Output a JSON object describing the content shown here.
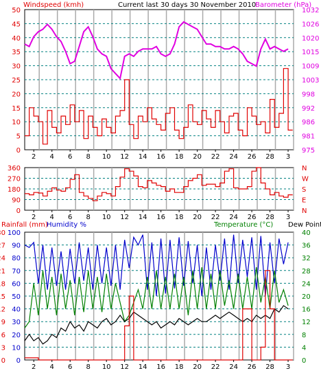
{
  "header": {
    "left_title": "Windspeed (kmh)",
    "center_title": "Current last 30 days 30 November 2010",
    "right_title": "Barometer (hPa)"
  },
  "colors": {
    "windspeed": "#e00000",
    "barometer": "#e000e0",
    "wind_dir": "#e00000",
    "rainfall": "#e00000",
    "humidity": "#0000cc",
    "temperature": "#008000",
    "dewpoint": "#000000",
    "grid_dash": "#008080",
    "vertical_day_lines": "#aaaaaa",
    "axis_text_left_top": "#e00000",
    "axis_text_right_top": "#e000e0",
    "axis_text_left_bottom_rain": "#e00000",
    "axis_text_left_bottom_hum": "#0000cc",
    "axis_text_right_bottom": "#008000"
  },
  "x_ticks": [
    "2",
    "4",
    "6",
    "8",
    "10",
    "12",
    "14",
    "16",
    "18",
    "20",
    "22",
    "24",
    "26",
    "28",
    "3"
  ],
  "chart_data": [
    {
      "type": "line",
      "title": "Current last 30 days 30 November 2010",
      "xlabel": "",
      "ylabel": "Windspeed (kmh)",
      "ylim": [
        0,
        50
      ],
      "yticks": [
        "0",
        "5",
        "10",
        "15",
        "20",
        "25",
        "30",
        "35",
        "40",
        "45",
        "50"
      ],
      "y2label": "Barometer (hPa)",
      "y2lim": [
        975,
        1032
      ],
      "y2ticks": [
        "975",
        "981",
        "986",
        "992",
        "998",
        "1003",
        "1009",
        "1015",
        "1020",
        "1026",
        "1032"
      ],
      "x_range_days": [
        1,
        30.6
      ],
      "grid": true,
      "series": [
        {
          "name": "Windspeed (kmh)",
          "axis": "left",
          "x": [
            1,
            1.5,
            2,
            2.5,
            3,
            3.5,
            4,
            4.5,
            5,
            5.5,
            6,
            6.5,
            7,
            7.5,
            8,
            8.5,
            9,
            9.5,
            10,
            10.5,
            11,
            11.5,
            12,
            12.5,
            13,
            13.5,
            14,
            14.5,
            15,
            15.5,
            16,
            16.5,
            17,
            17.5,
            18,
            18.5,
            19,
            19.5,
            20,
            20.5,
            21,
            21.5,
            22,
            22.5,
            23,
            23.5,
            24,
            24.5,
            25,
            25.5,
            26,
            26.5,
            27,
            27.5,
            28,
            28.5,
            29,
            29.5,
            30
          ],
          "values": [
            5,
            15,
            12,
            10,
            2,
            14,
            8,
            6,
            12,
            9,
            16,
            10,
            14,
            4,
            12,
            8,
            5,
            11,
            8,
            6,
            12,
            14,
            25,
            9,
            4,
            12,
            10,
            15,
            11,
            9,
            7,
            13,
            15,
            7,
            4,
            8,
            16,
            10,
            9,
            14,
            11,
            8,
            14,
            10,
            6,
            12,
            13,
            7,
            5,
            15,
            12,
            9,
            10,
            6,
            18,
            8,
            13,
            29,
            7
          ]
        },
        {
          "name": "Barometer (hPa)",
          "axis": "right",
          "x": [
            1,
            1.5,
            2,
            2.5,
            3,
            3.5,
            4,
            4.5,
            5,
            5.5,
            6,
            6.5,
            7,
            7.5,
            8,
            8.5,
            9,
            9.5,
            10,
            10.5,
            11,
            11.5,
            12,
            12.5,
            13,
            13.5,
            14,
            14.5,
            15,
            15.5,
            16,
            16.5,
            17,
            17.5,
            18,
            18.5,
            19,
            19.5,
            20,
            20.5,
            21,
            21.5,
            22,
            22.5,
            23,
            23.5,
            24,
            24.5,
            25,
            25.5,
            26,
            26.5,
            27,
            27.5,
            28,
            28.5,
            29,
            29.5,
            30
          ],
          "values": [
            1018,
            1017,
            1021,
            1023,
            1024,
            1026,
            1024,
            1021,
            1019,
            1015,
            1010,
            1011,
            1017,
            1023,
            1025,
            1021,
            1016,
            1014,
            1013,
            1008,
            1006,
            1004,
            1013,
            1014,
            1013,
            1015,
            1016,
            1016,
            1016,
            1017,
            1014,
            1013,
            1014,
            1018,
            1025,
            1027,
            1026,
            1025,
            1024,
            1021,
            1018,
            1018,
            1017,
            1017,
            1016,
            1016,
            1017,
            1016,
            1014,
            1011,
            1010,
            1009,
            1016,
            1020,
            1016,
            1017,
            1016,
            1015,
            1016
          ]
        }
      ]
    },
    {
      "type": "line",
      "ylabel": "",
      "ylim": [
        0,
        360
      ],
      "yticks": [
        "0",
        "90",
        "180",
        "270",
        "360"
      ],
      "y2ticks": [
        "N",
        "W",
        "S",
        "E",
        "N"
      ],
      "grid": true,
      "series": [
        {
          "name": "",
          "x": [
            1,
            1.5,
            2,
            2.5,
            3,
            3.5,
            4,
            4.5,
            5,
            5.5,
            6,
            6.5,
            7,
            7.5,
            8,
            8.5,
            9,
            9.5,
            10,
            10.5,
            11,
            11.5,
            12,
            12.5,
            13,
            13.5,
            14,
            14.5,
            15,
            15.5,
            16,
            16.5,
            17,
            17.5,
            18,
            18.5,
            19,
            19.5,
            20,
            20.5,
            21,
            21.5,
            22,
            22.5,
            23,
            23.5,
            24,
            24.5,
            25,
            25.5,
            26,
            26.5,
            27,
            27.5,
            28,
            28.5,
            29,
            29.5,
            30
          ],
          "values": [
            140,
            130,
            150,
            145,
            120,
            160,
            190,
            170,
            160,
            190,
            260,
            300,
            150,
            120,
            100,
            80,
            120,
            150,
            140,
            120,
            200,
            280,
            350,
            330,
            290,
            200,
            190,
            250,
            230,
            210,
            200,
            160,
            180,
            150,
            150,
            200,
            250,
            270,
            300,
            210,
            220,
            220,
            200,
            230,
            330,
            350,
            190,
            180,
            180,
            200,
            330,
            360,
            230,
            180,
            130,
            150,
            120,
            110,
            130
          ]
        }
      ]
    },
    {
      "type": "line",
      "ylabel": "Rainfall (mm)  Humidity %",
      "ylim": [
        0,
        30
      ],
      "yticks": [
        "0",
        "3",
        "6",
        "9",
        "12",
        "15",
        "18",
        "21",
        "24",
        "27",
        "30"
      ],
      "hum_yticks": [
        "0",
        "10",
        "20",
        "30",
        "40",
        "50",
        "60",
        "70",
        "80",
        "90",
        "100"
      ],
      "y2label": "Temperature (°C)Dew Point",
      "y2lim": [
        0,
        40
      ],
      "y2ticks": [
        "0",
        "4",
        "8",
        "12",
        "16",
        "20",
        "24",
        "28",
        "32",
        "36",
        "40"
      ],
      "grid": true,
      "series": [
        {
          "name": "Rainfall (mm)",
          "axis": "left",
          "x": [
            1,
            1.5,
            2,
            2.5,
            3,
            3.5,
            4,
            4.5,
            5,
            5.5,
            6,
            6.5,
            7,
            7.5,
            8,
            8.5,
            9,
            9.5,
            10,
            10.5,
            11,
            11.5,
            12,
            12.5,
            13,
            13.5,
            14,
            14.5,
            15,
            15.5,
            16,
            16.5,
            17,
            17.5,
            18,
            18.5,
            19,
            19.5,
            20,
            20.5,
            21,
            21.5,
            22,
            22.5,
            23,
            23.5,
            24,
            24.5,
            25,
            25.5,
            26,
            26.5,
            27,
            27.5,
            28,
            28.5,
            29,
            29.5,
            30
          ],
          "values": [
            0.5,
            0.5,
            0.5,
            0,
            0,
            0,
            0,
            0,
            0,
            0,
            0,
            0,
            0,
            0,
            0,
            0,
            0,
            0,
            0,
            0,
            0,
            0,
            8,
            15,
            0,
            0,
            0,
            0,
            0,
            0,
            0,
            0,
            0,
            0,
            0,
            0,
            0,
            0,
            0,
            0,
            0,
            0,
            0,
            0,
            0,
            0,
            0,
            0,
            12,
            12,
            0,
            0,
            3,
            21,
            12,
            0,
            0,
            0,
            0
          ]
        },
        {
          "name": "Humidity %",
          "axis": "hum",
          "x": [
            1,
            1.5,
            2,
            2.5,
            3,
            3.5,
            4,
            4.5,
            5,
            5.5,
            6,
            6.5,
            7,
            7.5,
            8,
            8.5,
            9,
            9.5,
            10,
            10.5,
            11,
            11.5,
            12,
            12.5,
            13,
            13.5,
            14,
            14.5,
            15,
            15.5,
            16,
            16.5,
            17,
            17.5,
            18,
            18.5,
            19,
            19.5,
            20,
            20.5,
            21,
            21.5,
            22,
            22.5,
            23,
            23.5,
            24,
            24.5,
            25,
            25.5,
            26,
            26.5,
            27,
            27.5,
            28,
            28.5,
            29,
            29.5,
            30
          ],
          "values": [
            90,
            88,
            92,
            60,
            90,
            55,
            88,
            58,
            85,
            55,
            87,
            60,
            92,
            62,
            88,
            55,
            90,
            60,
            88,
            58,
            90,
            55,
            94,
            72,
            96,
            90,
            98,
            55,
            92,
            50,
            95,
            52,
            94,
            56,
            96,
            58,
            93,
            60,
            90,
            50,
            88,
            55,
            90,
            62,
            95,
            55,
            98,
            60,
            94,
            65,
            96,
            55,
            97,
            50,
            92,
            60,
            95,
            75,
            92
          ]
        },
        {
          "name": "Temperature (°C)",
          "axis": "right",
          "x": [
            1,
            1.5,
            2,
            2.5,
            3,
            3.5,
            4,
            4.5,
            5,
            5.5,
            6,
            6.5,
            7,
            7.5,
            8,
            8.5,
            9,
            9.5,
            10,
            10.5,
            11,
            11.5,
            12,
            12.5,
            13,
            13.5,
            14,
            14.5,
            15,
            15.5,
            16,
            16.5,
            17,
            17.5,
            18,
            18.5,
            19,
            19.5,
            20,
            20.5,
            21,
            21.5,
            22,
            22.5,
            23,
            23.5,
            24,
            24.5,
            25,
            25.5,
            26,
            26.5,
            27,
            27.5,
            28,
            28.5,
            29,
            29.5,
            30
          ],
          "values": [
            10,
            12,
            24,
            14,
            28,
            16,
            26,
            14,
            27,
            16,
            25,
            14,
            26,
            15,
            28,
            16,
            26,
            15,
            27,
            16,
            24,
            18,
            12,
            14,
            18,
            22,
            16,
            26,
            16,
            28,
            16,
            26,
            16,
            27,
            16,
            26,
            14,
            28,
            16,
            29,
            16,
            27,
            16,
            28,
            17,
            25,
            16,
            27,
            16,
            26,
            16,
            29,
            18,
            26,
            16,
            28,
            18,
            22,
            17
          ]
        },
        {
          "name": "Dew Point",
          "axis": "right",
          "x": [
            1,
            1.5,
            2,
            2.5,
            3,
            3.5,
            4,
            4.5,
            5,
            5.5,
            6,
            6.5,
            7,
            7.5,
            8,
            8.5,
            9,
            9.5,
            10,
            10.5,
            11,
            11.5,
            12,
            12.5,
            13,
            13.5,
            14,
            14.5,
            15,
            15.5,
            16,
            16.5,
            17,
            17.5,
            18,
            18.5,
            19,
            19.5,
            20,
            20.5,
            21,
            21.5,
            22,
            22.5,
            23,
            23.5,
            24,
            24.5,
            25,
            25.5,
            26,
            26.5,
            27,
            27.5,
            28,
            28.5,
            29,
            29.5,
            30
          ],
          "values": [
            6,
            8,
            6,
            7,
            5,
            6,
            8,
            7,
            10,
            9,
            12,
            10,
            11,
            9,
            12,
            11,
            10,
            12,
            13,
            11,
            12,
            14,
            12,
            13,
            15,
            14,
            13,
            12,
            11,
            12,
            10,
            11,
            12,
            11,
            13,
            12,
            11,
            12,
            13,
            12,
            12,
            13,
            14,
            13,
            14,
            15,
            14,
            13,
            12,
            13,
            12,
            14,
            13,
            14,
            13,
            16,
            15,
            17,
            16
          ]
        }
      ]
    }
  ]
}
